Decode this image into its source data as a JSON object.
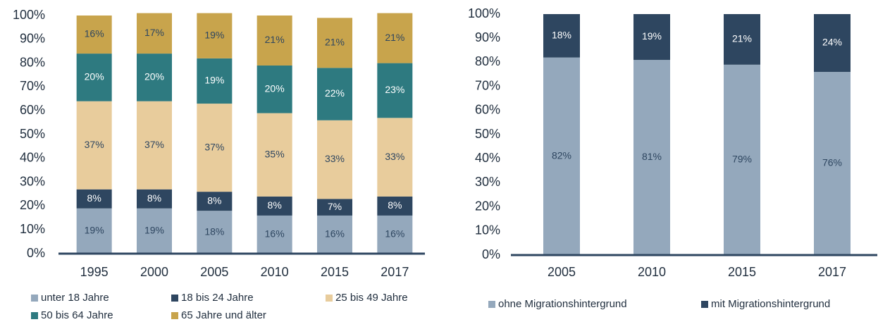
{
  "chart_data": [
    {
      "type": "bar",
      "stacked": true,
      "categories": [
        "1995",
        "2000",
        "2005",
        "2010",
        "2015",
        "2017"
      ],
      "series": [
        {
          "name": "unter 18 Jahre",
          "color": "#94a8bc",
          "values": [
            19,
            19,
            18,
            16,
            16,
            16
          ],
          "value_labels": [
            "19%",
            "19%",
            "18%",
            "16%",
            "16%",
            "16%"
          ]
        },
        {
          "name": "18 bis 24 Jahre",
          "color": "#2e4660",
          "values": [
            8,
            8,
            8,
            8,
            7,
            8
          ],
          "value_labels": [
            "8%",
            "8%",
            "8%",
            "8%",
            "7%",
            "8%"
          ]
        },
        {
          "name": "25 bis 49 Jahre",
          "color": "#e8cc9c",
          "values": [
            37,
            37,
            37,
            35,
            33,
            33
          ],
          "value_labels": [
            "37%",
            "37%",
            "37%",
            "35%",
            "33%",
            "33%"
          ]
        },
        {
          "name": "50 bis 64 Jahre",
          "color": "#2e7a80",
          "values": [
            20,
            20,
            19,
            20,
            22,
            23
          ],
          "value_labels": [
            "20%",
            "20%",
            "19%",
            "20%",
            "22%",
            "23%"
          ]
        },
        {
          "name": "65 Jahre und älter",
          "color": "#c8a44c",
          "values": [
            16,
            17,
            19,
            21,
            21,
            21
          ],
          "value_labels": [
            "16%",
            "17%",
            "19%",
            "21%",
            "21%",
            "21%"
          ]
        }
      ],
      "ylim": [
        0,
        100
      ],
      "yticks": [
        {
          "value": 0,
          "label": "0%"
        },
        {
          "value": 10,
          "label": "10%"
        },
        {
          "value": 20,
          "label": "20%"
        },
        {
          "value": 30,
          "label": "30%"
        },
        {
          "value": 40,
          "label": "40%"
        },
        {
          "value": 50,
          "label": "50%"
        },
        {
          "value": 60,
          "label": "60%"
        },
        {
          "value": 70,
          "label": "70%"
        },
        {
          "value": 80,
          "label": "80%"
        },
        {
          "value": 90,
          "label": "90%"
        },
        {
          "value": 100,
          "label": "100%"
        }
      ],
      "grid": false,
      "legend": "bottom"
    },
    {
      "type": "bar",
      "stacked": true,
      "categories": [
        "2005",
        "2010",
        "2015",
        "2017"
      ],
      "series": [
        {
          "name": "ohne Migrationshintergrund",
          "color": "#94a8bc",
          "values": [
            82,
            81,
            79,
            76
          ],
          "value_labels": [
            "82%",
            "81%",
            "79%",
            "76%"
          ]
        },
        {
          "name": "mit Migrationshintergrund",
          "color": "#2e4660",
          "values": [
            18,
            19,
            21,
            24
          ],
          "value_labels": [
            "18%",
            "19%",
            "21%",
            "24%"
          ]
        }
      ],
      "ylim": [
        0,
        100
      ],
      "yticks": [
        {
          "value": 0,
          "label": "0%"
        },
        {
          "value": 10,
          "label": "10%"
        },
        {
          "value": 20,
          "label": "20%"
        },
        {
          "value": 30,
          "label": "30%"
        },
        {
          "value": 40,
          "label": "40%"
        },
        {
          "value": 50,
          "label": "50%"
        },
        {
          "value": 60,
          "label": "60%"
        },
        {
          "value": 70,
          "label": "70%"
        },
        {
          "value": 80,
          "label": "80%"
        },
        {
          "value": 90,
          "label": "90%"
        },
        {
          "value": 100,
          "label": "100%"
        }
      ],
      "grid": false,
      "legend": "bottom"
    }
  ]
}
